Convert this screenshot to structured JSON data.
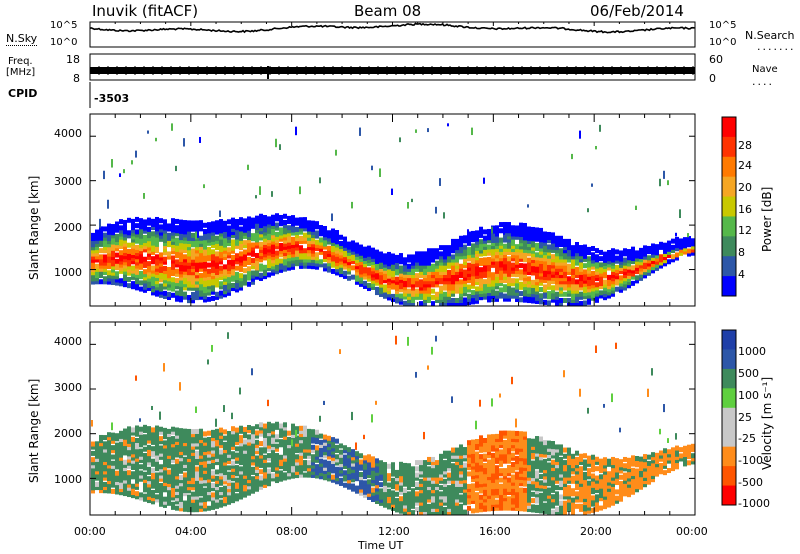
{
  "header": {
    "station": "Inuvik (fitACF)",
    "beam": "Beam 08",
    "date": "06/Feb/2014"
  },
  "top_panels": {
    "nsky_label": "N.Sky",
    "nsky_ticks": [
      "10^5",
      "10^0"
    ],
    "nsearch_label": "N.Search",
    "nsearch_ticks": [
      "10^5",
      "10^0"
    ],
    "freq_label_line1": "Freq.",
    "freq_label_line2": "[MHz]",
    "freq_ticks": [
      "18",
      "8"
    ],
    "nave_label": "Nave",
    "nave_ticks": [
      "60",
      "0"
    ],
    "cpid_label": "CPID",
    "cpid_value": "-3503"
  },
  "colors": {
    "power_scale": [
      "#0000ff",
      "#2d57a8",
      "#3e8a5c",
      "#55b84a",
      "#c8c800",
      "#f5a623",
      "#ff7a00",
      "#ff3300",
      "#ff0000"
    ],
    "velocity_scale": [
      "#ff0000",
      "#ff5500",
      "#ff8c1a",
      "#c8c8c8",
      "#c8c8c8",
      "#5fcf3f",
      "#3e8a5c",
      "#2d57a8",
      "#1f3fa8"
    ]
  },
  "chart_data": [
    {
      "type": "heatmap",
      "title": "Power",
      "ylabel": "Slant Range [km]",
      "xlabel": "",
      "ylim": [
        180,
        4500
      ],
      "xlim": [
        "00:00",
        "24:00"
      ],
      "yticks": [
        "1000",
        "2000",
        "3000",
        "4000"
      ],
      "colorbar_label": "Power [dB]",
      "colorbar_ticks": [
        "4",
        "8",
        "12",
        "16",
        "20",
        "24",
        "28"
      ],
      "colorbar_range": [
        0,
        30
      ]
    },
    {
      "type": "heatmap",
      "title": "Velocity",
      "ylabel": "Slant Range [km]",
      "xlabel": "Time UT",
      "ylim": [
        180,
        4500
      ],
      "xlim": [
        "00:00",
        "24:00"
      ],
      "xticks": [
        "00:00",
        "04:00",
        "08:00",
        "12:00",
        "16:00",
        "20:00",
        "00:00"
      ],
      "yticks": [
        "1000",
        "2000",
        "3000",
        "4000"
      ],
      "colorbar_label": "Velocity [m s⁻¹]",
      "colorbar_ticks": [
        "1000",
        "500",
        "100",
        "25",
        "-25",
        "-100",
        "-500",
        "-1000"
      ]
    }
  ]
}
